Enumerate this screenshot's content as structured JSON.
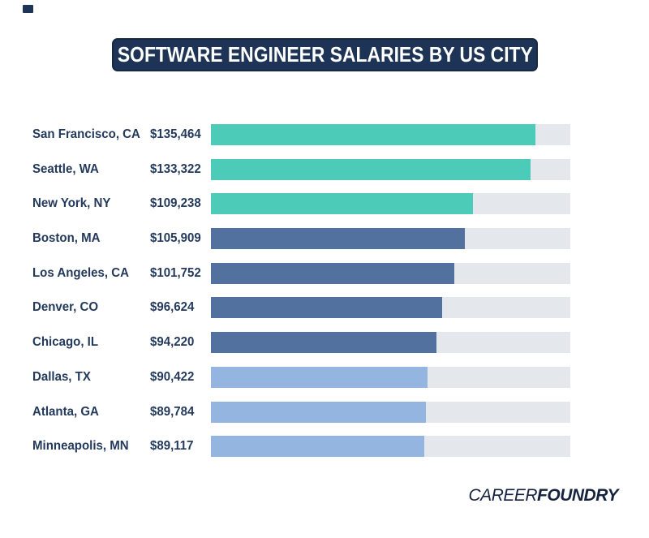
{
  "title": "SOFTWARE ENGINEER SALARIES BY US CITY",
  "logo": {
    "part1": "CAREER",
    "part2": "FOUNDRY"
  },
  "colors": {
    "banner_bg": "#1d3457",
    "banner_text": "#ffffff",
    "label_text": "#243a5c",
    "track": "#e4e8ec",
    "teal": "#4ccbb8",
    "slate_blue": "#52719f",
    "light_blue": "#93b5e0",
    "logo_text": "#16233f"
  },
  "chart_data": {
    "type": "bar",
    "orientation": "horizontal",
    "title": "SOFTWARE ENGINEER SALARIES BY US CITY",
    "xlabel": "",
    "ylabel": "",
    "xlim": [
      0,
      150000
    ],
    "grid": false,
    "legend": false,
    "categories": [
      "San Francisco, CA",
      "Seattle, WA",
      "New York, NY",
      "Boston, MA",
      "Los Angeles, CA",
      "Denver, CO",
      "Chicago, IL",
      "Dallas, TX",
      "Atlanta, GA",
      "Minneapolis, MN"
    ],
    "values": [
      135464,
      133322,
      109238,
      105909,
      101752,
      96624,
      94220,
      90422,
      89784,
      89117
    ],
    "value_labels": [
      "$135,464",
      "$133,322",
      "$109,238",
      "$105,909",
      "$101,752",
      "$96,624",
      "$94,220",
      "$90,422",
      "$89,784",
      "$89,117"
    ],
    "bar_colors": [
      "#4ccbb8",
      "#4ccbb8",
      "#4ccbb8",
      "#52719f",
      "#52719f",
      "#52719f",
      "#52719f",
      "#93b5e0",
      "#93b5e0",
      "#93b5e0"
    ]
  }
}
